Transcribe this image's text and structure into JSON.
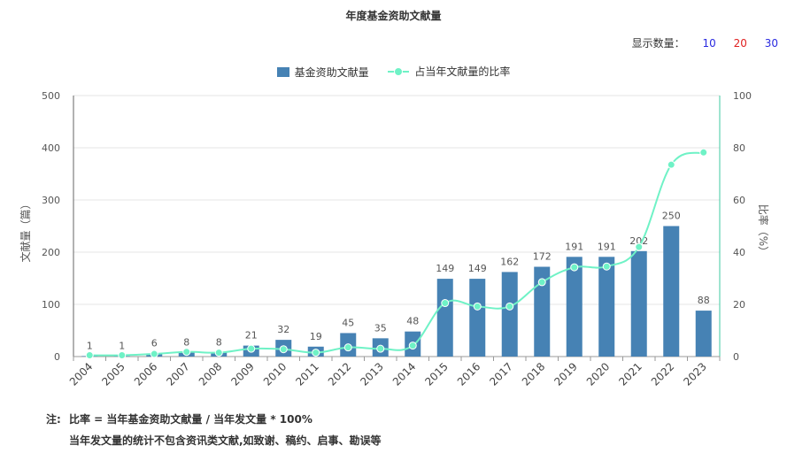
{
  "colors": {
    "bar": "#4682b4",
    "line": "#6ff2c6",
    "y_axis_left": "#666666",
    "y_axis_right": "#3ec9a0",
    "grid": "#e6e6e6"
  },
  "display_count": {
    "label": "显示数量：",
    "options": [
      "10",
      "20",
      "30"
    ]
  },
  "notes": {
    "prefix": "注:",
    "line1": "比率 = 当年基金资助文献量 / 当年发文量 * 100%",
    "line2": "当年发文量的统计不包含资讯类文献,如致谢、稿约、启事、勘误等"
  },
  "chart_data": {
    "type": "bar",
    "title": "年度基金资助文献量",
    "categories": [
      "2004",
      "2005",
      "2006",
      "2007",
      "2008",
      "2009",
      "2010",
      "2011",
      "2012",
      "2013",
      "2014",
      "2015",
      "2016",
      "2017",
      "2018",
      "2019",
      "2020",
      "2021",
      "2022",
      "2023"
    ],
    "series": [
      {
        "name": "基金资助文献量",
        "type": "bar",
        "axis": "left",
        "values": [
          1,
          1,
          6,
          8,
          8,
          21,
          32,
          19,
          45,
          35,
          48,
          149,
          149,
          162,
          172,
          191,
          191,
          202,
          250,
          88
        ],
        "data_labels": [
          "1",
          "1",
          "6",
          "8",
          "8",
          "21",
          "32",
          "19",
          "45",
          "35",
          "48",
          "149",
          "149",
          "162",
          "172",
          "191",
          "191",
          "202",
          "250",
          "88"
        ]
      },
      {
        "name": "占当年文献量的比率",
        "type": "line",
        "axis": "right",
        "values": [
          0.5,
          0.5,
          1,
          1.8,
          1.5,
          3,
          2.8,
          1.5,
          3.5,
          3,
          4.2,
          20.5,
          19.2,
          19.2,
          28.5,
          34.2,
          34.5,
          42,
          73.5,
          78.2
        ]
      }
    ],
    "ylabel_left": "文献量（篇）",
    "ylabel_right": "比率（%）",
    "ylim_left": [
      0,
      500
    ],
    "ylim_right": [
      0,
      100
    ],
    "yticks_left": [
      "0",
      "100",
      "200",
      "300",
      "400",
      "500"
    ],
    "yticks_right": [
      "0",
      "20",
      "40",
      "60",
      "80",
      "100"
    ],
    "grid": true,
    "legend_position": "top-center"
  }
}
